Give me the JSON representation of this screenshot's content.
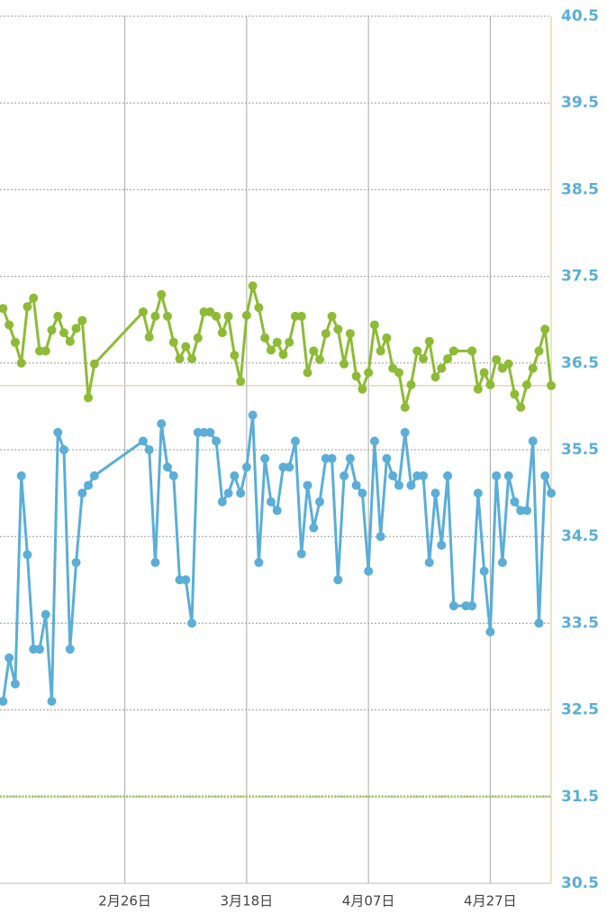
{
  "chart_data": {
    "type": "line",
    "xlim": [
      36.5,
      127
    ],
    "xticks": [
      {
        "value": 57,
        "label": "2月26日"
      },
      {
        "value": 77,
        "label": "3月18日"
      },
      {
        "value": 97,
        "label": "4月07日"
      },
      {
        "value": 117,
        "label": "4月27日"
      }
    ],
    "ylim": [
      30.5,
      40.5
    ],
    "yticks": [
      30.5,
      31.5,
      32.5,
      33.5,
      34.5,
      35.5,
      36.5,
      37.5,
      38.5,
      39.5,
      40.5
    ],
    "grid": true,
    "reference_lines": [
      {
        "value": 36.24,
        "color": "#e8d6a8",
        "style": "solid"
      },
      {
        "value": 31.5,
        "color": "#a9c96a",
        "style": "dotted"
      }
    ],
    "series": [
      {
        "color": "#8dbb35",
        "x": [
          37,
          38,
          39,
          40,
          41,
          42,
          43,
          44,
          45,
          46,
          47,
          48,
          49,
          50,
          51,
          52,
          60,
          61,
          62,
          63,
          64,
          65,
          66,
          67,
          68,
          69,
          70,
          71,
          72,
          73,
          74,
          75,
          76,
          77,
          78,
          79,
          80,
          81,
          82,
          83,
          84,
          85,
          86,
          87,
          88,
          89,
          90,
          91,
          92,
          93,
          94,
          95,
          96,
          97,
          98,
          99,
          100,
          101,
          102,
          103,
          104,
          105,
          106,
          107,
          108,
          109,
          110,
          111,
          114,
          115,
          116,
          117,
          118,
          119,
          120,
          121,
          122,
          123,
          124,
          125,
          126,
          127
        ],
        "values": [
          37.13,
          36.94,
          36.74,
          36.5,
          37.15,
          37.25,
          36.64,
          36.64,
          36.88,
          37.04,
          36.85,
          36.75,
          36.9,
          36.99,
          36.1,
          36.49,
          37.09,
          36.8,
          37.04,
          37.29,
          37.04,
          36.74,
          36.55,
          36.69,
          36.55,
          36.79,
          37.09,
          37.09,
          37.04,
          36.85,
          37.04,
          36.59,
          36.29,
          37.05,
          37.39,
          37.14,
          36.79,
          36.65,
          36.74,
          36.6,
          36.74,
          37.04,
          37.04,
          36.39,
          36.64,
          36.54,
          36.84,
          37.04,
          36.89,
          36.49,
          36.84,
          36.35,
          36.2,
          36.39,
          36.94,
          36.64,
          36.79,
          36.44,
          36.39,
          35.99,
          36.25,
          36.64,
          36.55,
          36.75,
          36.34,
          36.44,
          36.55,
          36.64,
          36.64,
          36.2,
          36.39,
          36.25,
          36.54,
          36.44,
          36.49,
          36.14,
          35.99,
          36.25,
          36.44,
          36.64,
          36.89,
          36.24
        ]
      },
      {
        "color": "#5aaed8",
        "x": [
          37,
          38,
          39,
          40,
          41,
          42,
          43,
          44,
          45,
          46,
          47,
          48,
          49,
          50,
          51,
          52,
          60,
          61,
          62,
          63,
          64,
          65,
          66,
          67,
          68,
          69,
          70,
          71,
          72,
          73,
          74,
          75,
          76,
          77,
          78,
          79,
          80,
          81,
          82,
          83,
          84,
          85,
          86,
          87,
          88,
          89,
          90,
          91,
          92,
          93,
          94,
          95,
          96,
          97,
          98,
          99,
          100,
          101,
          102,
          103,
          104,
          105,
          106,
          107,
          108,
          109,
          110,
          111,
          113,
          114,
          115,
          116,
          117,
          118,
          119,
          120,
          121,
          122,
          123,
          124,
          125,
          126,
          127
        ],
        "values": [
          32.6,
          33.1,
          32.8,
          35.2,
          34.29,
          33.2,
          33.2,
          33.6,
          32.6,
          35.7,
          35.5,
          33.2,
          34.2,
          35.0,
          35.09,
          35.2,
          35.6,
          35.5,
          34.2,
          35.8,
          35.3,
          35.2,
          34.0,
          34.0,
          33.5,
          35.7,
          35.7,
          35.7,
          35.6,
          34.9,
          35.0,
          35.2,
          35.0,
          35.3,
          35.9,
          34.2,
          35.4,
          34.9,
          34.8,
          35.3,
          35.3,
          35.6,
          34.3,
          35.09,
          34.6,
          34.9,
          35.4,
          35.4,
          34.0,
          35.2,
          35.4,
          35.09,
          35.0,
          34.1,
          35.6,
          34.5,
          35.4,
          35.2,
          35.09,
          35.7,
          35.09,
          35.2,
          35.2,
          34.2,
          35.0,
          34.4,
          35.2,
          33.7,
          33.7,
          33.7,
          35.0,
          34.1,
          33.4,
          35.2,
          34.2,
          35.2,
          34.9,
          34.8,
          34.8,
          35.6,
          33.5,
          35.2,
          35.0
        ]
      }
    ]
  }
}
